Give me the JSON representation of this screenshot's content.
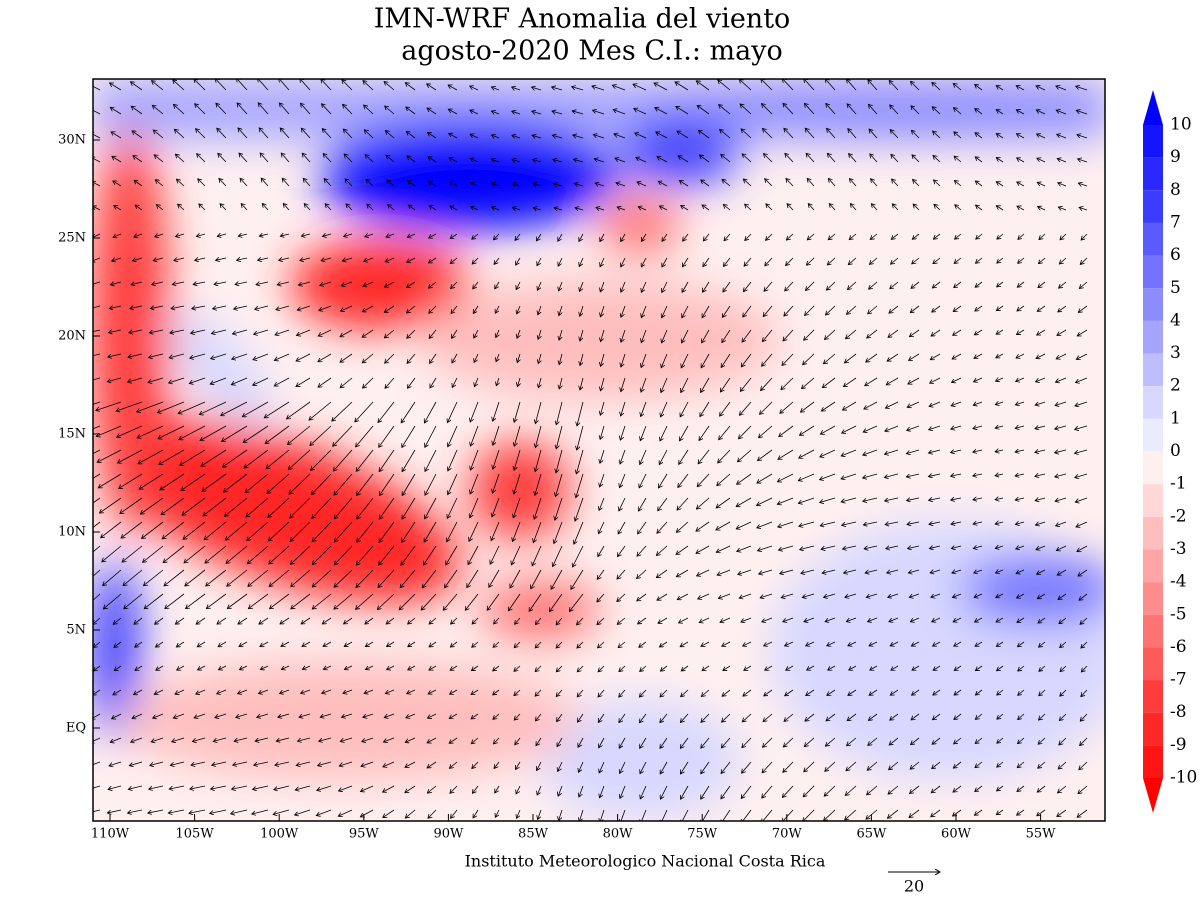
{
  "title": "IMN-WRF Anomalia del viento",
  "subtitle": "agosto-2020 Mes C.I.: mayo",
  "footer": "Instituto Meteorologico Nacional Costa Rica",
  "vector_reference": "20",
  "lon_labels": [
    "110W",
    "105W",
    "100W",
    "95W",
    "90W",
    "85W",
    "80W",
    "75W",
    "70W",
    "65W",
    "60W",
    "55W"
  ],
  "lat_labels": [
    "30N",
    "25N",
    "20N",
    "15N",
    "10N",
    "5N",
    "EQ"
  ],
  "colorbar": {
    "levels": [
      10,
      9,
      8,
      7,
      6,
      5,
      4,
      3,
      2,
      1,
      0,
      -1,
      -2,
      -3,
      -4,
      -5,
      -6,
      -7,
      -8,
      -9,
      -10
    ],
    "colors": [
      "#0000ff",
      "#1414ff",
      "#2828ff",
      "#3c3cff",
      "#5a5aff",
      "#7373ff",
      "#8c8cff",
      "#a5a5ff",
      "#bebeff",
      "#d7d7ff",
      "#ebebff",
      "#fff0f0",
      "#ffd7d7",
      "#ffbebe",
      "#ffa5a5",
      "#ff8c8c",
      "#ff7373",
      "#ff5a5a",
      "#ff3c3c",
      "#ff2828",
      "#ff1414",
      "#ff0000"
    ]
  }
}
